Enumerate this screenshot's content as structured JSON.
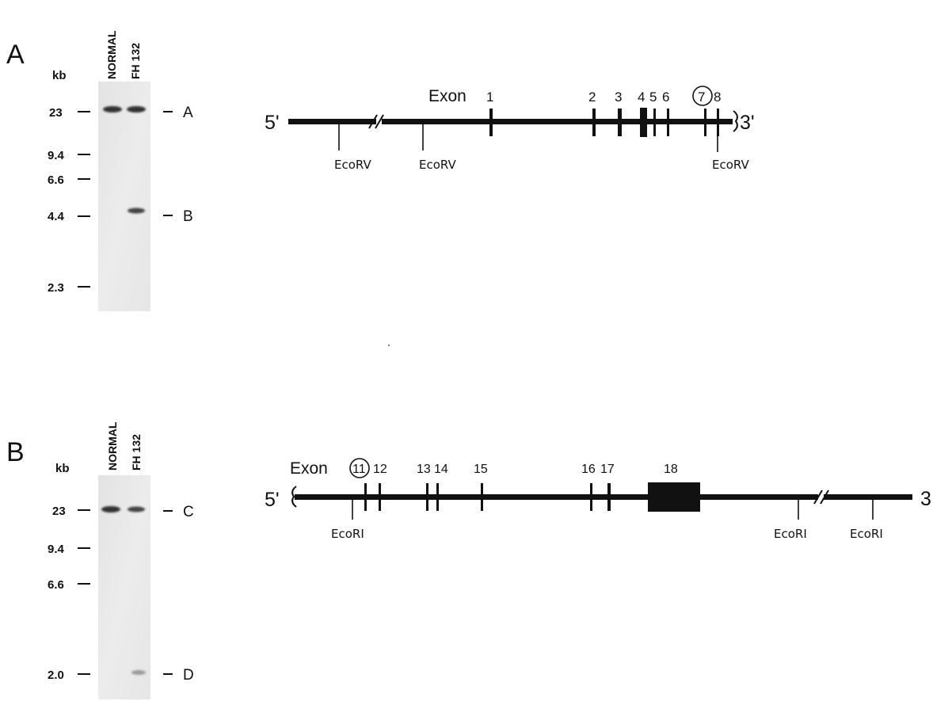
{
  "panel_a": {
    "letter": "A",
    "gel": {
      "unit": "kb",
      "lane_labels": [
        "NORMAL",
        "FH 132"
      ],
      "markers": [
        {
          "label": "23"
        },
        {
          "label": "9.4"
        },
        {
          "label": "6.6"
        },
        {
          "label": "4.4"
        },
        {
          "label": "2.3"
        }
      ],
      "band_labels": [
        "A",
        "B"
      ]
    },
    "map": {
      "five_prime": "5'",
      "three_prime": "3'",
      "exon_word": "Exon",
      "exons": [
        "1",
        "2",
        "3",
        "4",
        "5",
        "6",
        "7",
        "8"
      ],
      "sites": [
        "EcoRV",
        "EcoRV",
        "EcoRV"
      ]
    }
  },
  "panel_b": {
    "letter": "B",
    "gel": {
      "unit": "kb",
      "lane_labels": [
        "NORMAL",
        "FH 132"
      ],
      "markers": [
        {
          "label": "23"
        },
        {
          "label": "9.4"
        },
        {
          "label": "6.6"
        },
        {
          "label": "2.0"
        }
      ],
      "band_labels": [
        "C",
        "D"
      ]
    },
    "map": {
      "five_prime": "5'",
      "three_prime": "3",
      "exon_word": "Exon",
      "exons": [
        "11",
        "12",
        "13",
        "14",
        "15",
        "16",
        "17",
        "18"
      ],
      "sites": [
        "EcoRI",
        "EcoRI",
        "EcoRI"
      ]
    }
  }
}
